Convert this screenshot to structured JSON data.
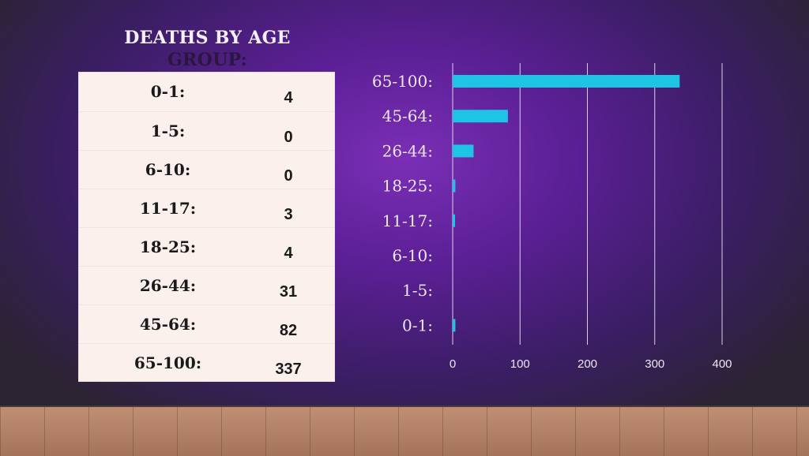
{
  "title_line1": "DEATHS BY AGE",
  "title_line2": "GROUP:",
  "table": [
    {
      "label": "0-1:",
      "value": "4"
    },
    {
      "label": "1-5:",
      "value": "0"
    },
    {
      "label": "6-10:",
      "value": "0"
    },
    {
      "label": "11-17:",
      "value": "3"
    },
    {
      "label": "18-25:",
      "value": "4"
    },
    {
      "label": "26-44:",
      "value": "31"
    },
    {
      "label": "45-64:",
      "value": "82"
    },
    {
      "label": "65-100:",
      "value": "337"
    }
  ],
  "chart_data": {
    "type": "bar",
    "orientation": "horizontal",
    "categories": [
      "65-100:",
      "45-64:",
      "26-44:",
      "18-25:",
      "11-17:",
      "6-10:",
      "1-5:",
      "0-1:"
    ],
    "values": [
      337,
      82,
      31,
      4,
      3,
      0,
      0,
      4
    ],
    "xlim": [
      0,
      400
    ],
    "xticks": [
      "0",
      "100",
      "200",
      "300",
      "400"
    ],
    "grid": "vertical",
    "bar_color": "#1ec4e4"
  }
}
